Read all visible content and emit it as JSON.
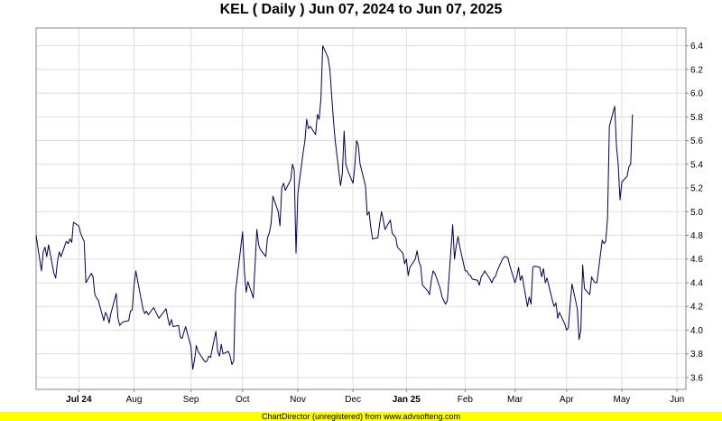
{
  "title": "KEL ( Daily ) Jun 07, 2024 to Jun 07, 2025",
  "footer": "ChartDirector (unregistered) from www.advsofteng.com",
  "colors": {
    "line": "#000050",
    "grid": "#dddddd",
    "plot_border": "#888888",
    "footer_bg": "#ffff00"
  },
  "chart_data": {
    "type": "line",
    "title": "KEL ( Daily ) Jun 07, 2024 to Jun 07, 2025",
    "xlabel": "",
    "ylabel": "",
    "ylim": [
      3.5,
      6.55
    ],
    "yticks": [
      3.6,
      3.8,
      4.0,
      4.2,
      4.4,
      4.6,
      4.8,
      5.0,
      5.2,
      5.4,
      5.6,
      5.8,
      6.0,
      6.2,
      6.4
    ],
    "yaxis_side": "right",
    "grid": true,
    "legend": "none",
    "x_range": [
      "2024-06-07",
      "2025-06-07"
    ],
    "x_ticks": [
      {
        "label": "Jul 24",
        "date": "2024-07-01",
        "bold": true
      },
      {
        "label": "Aug",
        "date": "2024-08-01",
        "bold": false
      },
      {
        "label": "Sep",
        "date": "2024-09-02",
        "bold": false
      },
      {
        "label": "Oct",
        "date": "2024-10-01",
        "bold": false
      },
      {
        "label": "Nov",
        "date": "2024-11-01",
        "bold": false
      },
      {
        "label": "Dec",
        "date": "2024-12-02",
        "bold": false
      },
      {
        "label": "Jan 25",
        "date": "2025-01-01",
        "bold": true
      },
      {
        "label": "Feb",
        "date": "2025-02-03",
        "bold": false
      },
      {
        "label": "Mar",
        "date": "2025-03-03",
        "bold": false
      },
      {
        "label": "Apr",
        "date": "2025-04-01",
        "bold": false
      },
      {
        "label": "May",
        "date": "2025-05-02",
        "bold": false
      },
      {
        "label": "Jun",
        "date": "2025-06-02",
        "bold": false
      }
    ],
    "series": [
      {
        "values": [
          [
            "2024-06-07",
            4.8
          ],
          [
            "2024-06-10",
            4.5
          ],
          [
            "2024-06-11",
            4.66
          ],
          [
            "2024-06-12",
            4.7
          ],
          [
            "2024-06-13",
            4.62
          ],
          [
            "2024-06-14",
            4.72
          ],
          [
            "2024-06-17",
            4.48
          ],
          [
            "2024-06-18",
            4.44
          ],
          [
            "2024-06-19",
            4.58
          ],
          [
            "2024-06-20",
            4.66
          ],
          [
            "2024-06-21",
            4.62
          ],
          [
            "2024-06-24",
            4.75
          ],
          [
            "2024-06-25",
            4.73
          ],
          [
            "2024-06-26",
            4.77
          ],
          [
            "2024-06-27",
            4.74
          ],
          [
            "2024-06-28",
            4.91
          ],
          [
            "2024-07-01",
            4.88
          ],
          [
            "2024-07-02",
            4.82
          ],
          [
            "2024-07-03",
            4.78
          ],
          [
            "2024-07-04",
            4.75
          ],
          [
            "2024-07-05",
            4.4
          ],
          [
            "2024-07-08",
            4.48
          ],
          [
            "2024-07-09",
            4.45
          ],
          [
            "2024-07-10",
            4.3
          ],
          [
            "2024-07-11",
            4.27
          ],
          [
            "2024-07-12",
            4.25
          ],
          [
            "2024-07-15",
            4.08
          ],
          [
            "2024-07-16",
            4.15
          ],
          [
            "2024-07-17",
            4.12
          ],
          [
            "2024-07-18",
            4.06
          ],
          [
            "2024-07-19",
            4.14
          ],
          [
            "2024-07-22",
            4.31
          ],
          [
            "2024-07-23",
            4.1
          ],
          [
            "2024-07-24",
            4.04
          ],
          [
            "2024-07-25",
            4.06
          ],
          [
            "2024-07-26",
            4.07
          ],
          [
            "2024-07-29",
            4.08
          ],
          [
            "2024-07-30",
            4.16
          ],
          [
            "2024-07-31",
            4.17
          ],
          [
            "2024-08-01",
            4.38
          ],
          [
            "2024-08-02",
            4.5
          ],
          [
            "2024-08-05",
            4.26
          ],
          [
            "2024-08-06",
            4.18
          ],
          [
            "2024-08-07",
            4.14
          ],
          [
            "2024-08-08",
            4.16
          ],
          [
            "2024-08-09",
            4.13
          ],
          [
            "2024-08-12",
            4.19
          ],
          [
            "2024-08-13",
            4.16
          ],
          [
            "2024-08-15",
            4.1
          ],
          [
            "2024-08-16",
            4.12
          ],
          [
            "2024-08-19",
            4.18
          ],
          [
            "2024-08-20",
            4.1
          ],
          [
            "2024-08-21",
            4.04
          ],
          [
            "2024-08-22",
            4.09
          ],
          [
            "2024-08-23",
            4.03
          ],
          [
            "2024-08-26",
            4.04
          ],
          [
            "2024-08-27",
            3.94
          ],
          [
            "2024-08-28",
            3.93
          ],
          [
            "2024-08-29",
            3.98
          ],
          [
            "2024-08-30",
            4.03
          ],
          [
            "2024-09-02",
            3.86
          ],
          [
            "2024-09-03",
            3.67
          ],
          [
            "2024-09-04",
            3.75
          ],
          [
            "2024-09-05",
            3.87
          ],
          [
            "2024-09-06",
            3.82
          ],
          [
            "2024-09-09",
            3.75
          ],
          [
            "2024-09-10",
            3.73
          ],
          [
            "2024-09-11",
            3.74
          ],
          [
            "2024-09-12",
            3.78
          ],
          [
            "2024-09-13",
            3.77
          ],
          [
            "2024-09-16",
            3.99
          ],
          [
            "2024-09-17",
            3.82
          ],
          [
            "2024-09-18",
            3.78
          ],
          [
            "2024-09-19",
            3.88
          ],
          [
            "2024-09-20",
            3.8
          ],
          [
            "2024-09-23",
            3.82
          ],
          [
            "2024-09-24",
            3.78
          ],
          [
            "2024-09-25",
            3.71
          ],
          [
            "2024-09-26",
            3.74
          ],
          [
            "2024-09-27",
            4.32
          ],
          [
            "2024-09-30",
            4.7
          ],
          [
            "2024-10-01",
            4.83
          ],
          [
            "2024-10-02",
            4.5
          ],
          [
            "2024-10-03",
            4.32
          ],
          [
            "2024-10-04",
            4.41
          ],
          [
            "2024-10-07",
            4.27
          ],
          [
            "2024-10-08",
            4.55
          ],
          [
            "2024-10-09",
            4.85
          ],
          [
            "2024-10-10",
            4.72
          ],
          [
            "2024-10-11",
            4.68
          ],
          [
            "2024-10-14",
            4.62
          ],
          [
            "2024-10-15",
            4.78
          ],
          [
            "2024-10-16",
            4.82
          ],
          [
            "2024-10-17",
            4.9
          ],
          [
            "2024-10-18",
            5.13
          ],
          [
            "2024-10-21",
            5.0
          ],
          [
            "2024-10-22",
            4.88
          ],
          [
            "2024-10-23",
            5.2
          ],
          [
            "2024-10-24",
            5.24
          ],
          [
            "2024-10-25",
            5.18
          ],
          [
            "2024-10-28",
            5.27
          ],
          [
            "2024-10-29",
            5.4
          ],
          [
            "2024-10-30",
            5.35
          ],
          [
            "2024-10-31",
            4.65
          ],
          [
            "2024-11-01",
            5.15
          ],
          [
            "2024-11-04",
            5.5
          ],
          [
            "2024-11-05",
            5.6
          ],
          [
            "2024-11-06",
            5.78
          ],
          [
            "2024-11-07",
            5.7
          ],
          [
            "2024-11-08",
            5.72
          ],
          [
            "2024-11-11",
            5.65
          ],
          [
            "2024-11-12",
            5.82
          ],
          [
            "2024-11-13",
            5.78
          ],
          [
            "2024-11-14",
            5.95
          ],
          [
            "2024-11-15",
            6.4
          ],
          [
            "2024-11-18",
            6.3
          ],
          [
            "2024-11-19",
            6.2
          ],
          [
            "2024-11-20",
            5.98
          ],
          [
            "2024-11-21",
            5.78
          ],
          [
            "2024-11-22",
            5.6
          ],
          [
            "2024-11-25",
            5.22
          ],
          [
            "2024-11-26",
            5.32
          ],
          [
            "2024-11-27",
            5.68
          ],
          [
            "2024-11-28",
            5.4
          ],
          [
            "2024-11-29",
            5.35
          ],
          [
            "2024-12-02",
            5.24
          ],
          [
            "2024-12-03",
            5.38
          ],
          [
            "2024-12-04",
            5.6
          ],
          [
            "2024-12-05",
            5.56
          ],
          [
            "2024-12-06",
            5.4
          ],
          [
            "2024-12-09",
            5.22
          ],
          [
            "2024-12-10",
            4.97
          ],
          [
            "2024-12-11",
            5.0
          ],
          [
            "2024-12-12",
            4.87
          ],
          [
            "2024-12-13",
            4.77
          ],
          [
            "2024-12-16",
            4.78
          ],
          [
            "2024-12-17",
            4.9
          ],
          [
            "2024-12-18",
            5.0
          ],
          [
            "2024-12-19",
            4.93
          ],
          [
            "2024-12-20",
            4.85
          ],
          [
            "2024-12-23",
            4.93
          ],
          [
            "2024-12-24",
            4.82
          ],
          [
            "2024-12-26",
            4.78
          ],
          [
            "2024-12-27",
            4.7
          ],
          [
            "2024-12-30",
            4.65
          ],
          [
            "2024-12-31",
            4.56
          ],
          [
            "2025-01-01",
            4.6
          ],
          [
            "2025-01-02",
            4.46
          ],
          [
            "2025-01-03",
            4.53
          ],
          [
            "2025-01-06",
            4.6
          ],
          [
            "2025-01-07",
            4.67
          ],
          [
            "2025-01-08",
            4.58
          ],
          [
            "2025-01-09",
            4.54
          ],
          [
            "2025-01-10",
            4.38
          ],
          [
            "2025-01-13",
            4.33
          ],
          [
            "2025-01-14",
            4.3
          ],
          [
            "2025-01-15",
            4.42
          ],
          [
            "2025-01-16",
            4.5
          ],
          [
            "2025-01-17",
            4.48
          ],
          [
            "2025-01-20",
            4.35
          ],
          [
            "2025-01-21",
            4.28
          ],
          [
            "2025-01-22",
            4.25
          ],
          [
            "2025-01-23",
            4.22
          ],
          [
            "2025-01-24",
            4.25
          ],
          [
            "2025-01-27",
            4.89
          ],
          [
            "2025-01-28",
            4.6
          ],
          [
            "2025-01-29",
            4.71
          ],
          [
            "2025-01-30",
            4.79
          ],
          [
            "2025-01-31",
            4.7
          ],
          [
            "2025-02-03",
            4.5
          ],
          [
            "2025-02-04",
            4.5
          ],
          [
            "2025-02-05",
            4.47
          ],
          [
            "2025-02-06",
            4.46
          ],
          [
            "2025-02-07",
            4.43
          ],
          [
            "2025-02-10",
            4.42
          ],
          [
            "2025-02-11",
            4.38
          ],
          [
            "2025-02-12",
            4.45
          ],
          [
            "2025-02-13",
            4.47
          ],
          [
            "2025-02-14",
            4.5
          ],
          [
            "2025-02-17",
            4.43
          ],
          [
            "2025-02-18",
            4.4
          ],
          [
            "2025-02-19",
            4.44
          ],
          [
            "2025-02-20",
            4.45
          ],
          [
            "2025-02-21",
            4.5
          ],
          [
            "2025-02-24",
            4.6
          ],
          [
            "2025-02-25",
            4.62
          ],
          [
            "2025-02-26",
            4.62
          ],
          [
            "2025-02-27",
            4.61
          ],
          [
            "2025-02-28",
            4.55
          ],
          [
            "2025-03-03",
            4.4
          ],
          [
            "2025-03-04",
            4.45
          ],
          [
            "2025-03-05",
            4.53
          ],
          [
            "2025-03-06",
            4.42
          ],
          [
            "2025-03-07",
            4.46
          ],
          [
            "2025-03-10",
            4.2
          ],
          [
            "2025-03-11",
            4.28
          ],
          [
            "2025-03-12",
            4.22
          ],
          [
            "2025-03-13",
            4.53
          ],
          [
            "2025-03-14",
            4.54
          ],
          [
            "2025-03-17",
            4.53
          ],
          [
            "2025-03-18",
            4.45
          ],
          [
            "2025-03-19",
            4.52
          ],
          [
            "2025-03-20",
            4.4
          ],
          [
            "2025-03-21",
            4.44
          ],
          [
            "2025-03-24",
            4.25
          ],
          [
            "2025-03-25",
            4.2
          ],
          [
            "2025-03-26",
            4.23
          ],
          [
            "2025-03-27",
            4.1
          ],
          [
            "2025-03-28",
            4.15
          ],
          [
            "2025-03-31",
            4.05
          ],
          [
            "2025-04-01",
            4.0
          ],
          [
            "2025-04-02",
            4.02
          ],
          [
            "2025-04-03",
            4.22
          ],
          [
            "2025-04-04",
            4.39
          ],
          [
            "2025-04-07",
            4.18
          ],
          [
            "2025-04-08",
            3.92
          ],
          [
            "2025-04-09",
            4.0
          ],
          [
            "2025-04-10",
            4.55
          ],
          [
            "2025-04-11",
            4.35
          ],
          [
            "2025-04-14",
            4.3
          ],
          [
            "2025-04-15",
            4.45
          ],
          [
            "2025-04-16",
            4.42
          ],
          [
            "2025-04-17",
            4.4
          ],
          [
            "2025-04-18",
            4.4
          ],
          [
            "2025-04-21",
            4.76
          ],
          [
            "2025-04-22",
            4.73
          ],
          [
            "2025-04-23",
            4.75
          ],
          [
            "2025-04-24",
            4.95
          ],
          [
            "2025-04-25",
            5.72
          ],
          [
            "2025-04-28",
            5.89
          ],
          [
            "2025-04-29",
            5.55
          ],
          [
            "2025-04-30",
            5.4
          ],
          [
            "2025-05-01",
            5.1
          ],
          [
            "2025-05-02",
            5.25
          ],
          [
            "2025-05-05",
            5.3
          ],
          [
            "2025-05-06",
            5.38
          ],
          [
            "2025-05-07",
            5.4
          ],
          [
            "2025-05-08",
            5.82
          ]
        ]
      }
    ]
  }
}
